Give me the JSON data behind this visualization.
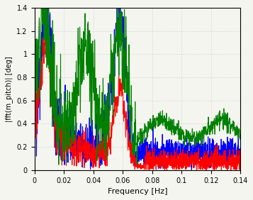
{
  "xlabel": "Frequency [Hz]",
  "ylabel": "|fft(m_pitch)| [deg]",
  "xlim": [
    0,
    0.14
  ],
  "ylim": [
    0,
    1.4
  ],
  "xticks": [
    0,
    0.02,
    0.04,
    0.06,
    0.08,
    0.1,
    0.12,
    0.14
  ],
  "yticks": [
    0,
    0.2,
    0.4,
    0.6,
    0.8,
    1.0,
    1.2,
    1.4
  ],
  "colors": [
    "blue",
    "red",
    "green"
  ],
  "grid_color": "#cccccc",
  "bg_color": "#f5f5f0",
  "linewidth": 0.8,
  "seed": 42
}
